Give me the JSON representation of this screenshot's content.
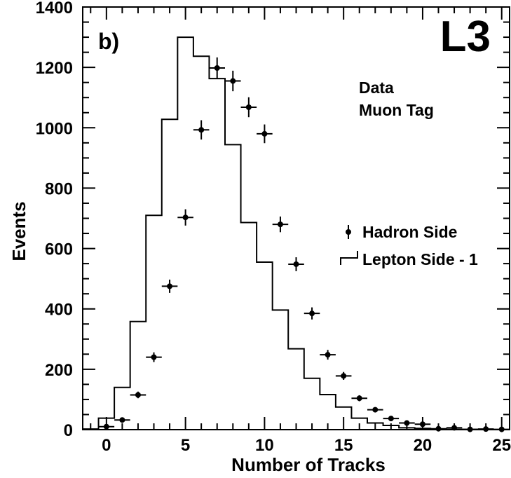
{
  "chart_data": {
    "type": "scatter",
    "xlabel": "Number of Tracks",
    "ylabel": "Events",
    "xlim": [
      -1.5,
      25.5
    ],
    "ylim": [
      0,
      1400
    ],
    "x_ticks": [
      0,
      5,
      10,
      15,
      20,
      25
    ],
    "y_ticks": [
      0,
      200,
      400,
      600,
      800,
      1000,
      1200,
      1400
    ],
    "grid": false,
    "legend_placement": "right",
    "annotations": {
      "panel": "b)",
      "experiment": "L3",
      "data_line1": "Data",
      "data_line2": "Muon Tag"
    },
    "series": [
      {
        "name": "Hadron Side",
        "kind": "points_with_errors",
        "x": [
          0,
          1,
          2,
          3,
          4,
          5,
          6,
          7,
          8,
          9,
          10,
          11,
          12,
          13,
          14,
          15,
          16,
          17,
          18,
          19,
          20,
          21,
          22,
          23,
          24,
          25
        ],
        "y": [
          10,
          32,
          115,
          240,
          475,
          703,
          993,
          1198,
          1155,
          1068,
          980,
          680,
          548,
          385,
          248,
          178,
          104,
          66,
          37,
          22,
          18,
          3,
          6,
          1,
          2,
          1
        ],
        "err": [
          3,
          5,
          11,
          16,
          22,
          27,
          32,
          35,
          34,
          33,
          31,
          26,
          23,
          20,
          16,
          13,
          10,
          8,
          6,
          5,
          4,
          2,
          2,
          1,
          1,
          1
        ]
      },
      {
        "name": "Lepton Side - 1",
        "kind": "histogram",
        "x": [
          -1,
          0,
          1,
          2,
          3,
          4,
          5,
          6,
          7,
          8,
          9,
          10,
          11,
          12,
          13,
          14,
          15,
          16,
          17,
          18,
          19,
          20,
          21,
          22,
          23,
          24,
          25
        ],
        "y": [
          2,
          38,
          140,
          358,
          710,
          1028,
          1300,
          1237,
          1163,
          944,
          686,
          555,
          396,
          268,
          170,
          116,
          75,
          38,
          22,
          14,
          6,
          4,
          2,
          1,
          1,
          0,
          0
        ]
      }
    ]
  }
}
